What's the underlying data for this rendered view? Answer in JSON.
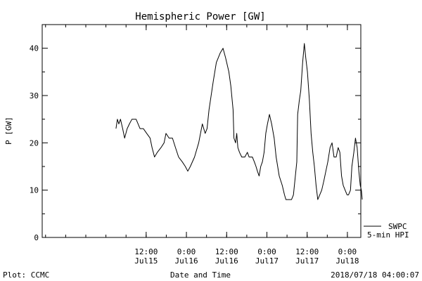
{
  "chart_data": {
    "type": "line",
    "title": "Hemispheric Power [GW]",
    "ylabel": "P [GW]",
    "xlabel": "Date and Time",
    "ylim": [
      0,
      45
    ],
    "yticks": [
      0,
      10,
      20,
      30,
      40
    ],
    "xlim": [
      "2018-07-14 05:00",
      "2018-07-18 04:00"
    ],
    "xticks": [
      {
        "time": "2018-07-15 12:00",
        "line1": "12:00",
        "line2": "Jul15"
      },
      {
        "time": "2018-07-16 00:00",
        "line1": "0:00",
        "line2": "Jul16"
      },
      {
        "time": "2018-07-16 12:00",
        "line1": "12:00",
        "line2": "Jul16"
      },
      {
        "time": "2018-07-17 00:00",
        "line1": "0:00",
        "line2": "Jul17"
      },
      {
        "time": "2018-07-17 12:00",
        "line1": "12:00",
        "line2": "Jul17"
      },
      {
        "time": "2018-07-18 00:00",
        "line1": "0:00",
        "line2": "Jul18"
      }
    ],
    "grid": false,
    "legend_position": "bottom-right",
    "legend": [
      "SWPC",
      "5-min HPI"
    ],
    "series": [
      {
        "name": "SWPC",
        "values": [
          [
            "2018-07-15 03:00",
            23
          ],
          [
            "2018-07-15 03:25",
            25
          ],
          [
            "2018-07-15 03:50",
            24
          ],
          [
            "2018-07-15 04:20",
            25
          ],
          [
            "2018-07-15 05:00",
            23
          ],
          [
            "2018-07-15 05:35",
            21
          ],
          [
            "2018-07-15 06:20",
            23
          ],
          [
            "2018-07-15 07:00",
            24
          ],
          [
            "2018-07-15 07:45",
            25
          ],
          [
            "2018-07-15 09:00",
            25
          ],
          [
            "2018-07-15 10:10",
            23
          ],
          [
            "2018-07-15 11:10",
            23
          ],
          [
            "2018-07-15 12:10",
            22
          ],
          [
            "2018-07-15 13:10",
            21
          ],
          [
            "2018-07-15 13:45",
            19
          ],
          [
            "2018-07-15 14:30",
            17
          ],
          [
            "2018-07-15 15:20",
            18
          ],
          [
            "2018-07-15 16:25",
            19
          ],
          [
            "2018-07-15 17:20",
            20
          ],
          [
            "2018-07-15 17:55",
            22
          ],
          [
            "2018-07-15 18:50",
            21
          ],
          [
            "2018-07-15 19:50",
            21
          ],
          [
            "2018-07-15 20:45",
            19
          ],
          [
            "2018-07-15 21:40",
            17
          ],
          [
            "2018-07-15 22:45",
            16
          ],
          [
            "2018-07-15 23:40",
            15
          ],
          [
            "2018-07-16 00:25",
            14
          ],
          [
            "2018-07-16 01:10",
            15
          ],
          [
            "2018-07-16 02:25",
            17
          ],
          [
            "2018-07-16 03:40",
            20
          ],
          [
            "2018-07-16 04:45",
            24
          ],
          [
            "2018-07-16 05:35",
            22
          ],
          [
            "2018-07-16 06:10",
            23
          ],
          [
            "2018-07-16 06:45",
            27
          ],
          [
            "2018-07-16 08:00",
            33
          ],
          [
            "2018-07-16 08:55",
            37
          ],
          [
            "2018-07-16 10:05",
            39
          ],
          [
            "2018-07-16 10:55",
            40
          ],
          [
            "2018-07-16 11:40",
            38
          ],
          [
            "2018-07-16 12:40",
            35
          ],
          [
            "2018-07-16 13:15",
            32
          ],
          [
            "2018-07-16 13:55",
            27
          ],
          [
            "2018-07-16 14:10",
            21
          ],
          [
            "2018-07-16 14:40",
            20
          ],
          [
            "2018-07-16 15:00",
            22
          ],
          [
            "2018-07-16 15:20",
            19
          ],
          [
            "2018-07-16 15:50",
            18
          ],
          [
            "2018-07-16 16:30",
            17
          ],
          [
            "2018-07-16 17:25",
            17
          ],
          [
            "2018-07-16 18:10",
            18
          ],
          [
            "2018-07-16 18:40",
            17
          ],
          [
            "2018-07-16 19:40",
            17
          ],
          [
            "2018-07-16 20:15",
            16
          ],
          [
            "2018-07-16 20:45",
            15
          ],
          [
            "2018-07-16 21:10",
            14
          ],
          [
            "2018-07-16 21:40",
            13
          ],
          [
            "2018-07-16 22:10",
            15
          ],
          [
            "2018-07-16 22:40",
            16
          ],
          [
            "2018-07-16 23:10",
            18
          ],
          [
            "2018-07-16 23:40",
            22
          ],
          [
            "2018-07-17 00:10",
            24
          ],
          [
            "2018-07-17 00:45",
            26
          ],
          [
            "2018-07-17 01:25",
            24
          ],
          [
            "2018-07-17 02:10",
            21
          ],
          [
            "2018-07-17 02:45",
            17
          ],
          [
            "2018-07-17 03:40",
            13
          ],
          [
            "2018-07-17 04:35",
            11
          ],
          [
            "2018-07-17 05:15",
            9
          ],
          [
            "2018-07-17 05:40",
            8
          ],
          [
            "2018-07-17 06:25",
            8
          ],
          [
            "2018-07-17 07:20",
            8
          ],
          [
            "2018-07-17 07:55",
            9
          ],
          [
            "2018-07-17 08:55",
            16
          ],
          [
            "2018-07-17 09:10",
            26
          ],
          [
            "2018-07-17 09:40",
            29
          ],
          [
            "2018-07-17 10:05",
            31
          ],
          [
            "2018-07-17 10:40",
            37
          ],
          [
            "2018-07-17 11:10",
            41
          ],
          [
            "2018-07-17 11:35",
            38
          ],
          [
            "2018-07-17 12:05",
            35
          ],
          [
            "2018-07-17 12:40",
            29
          ],
          [
            "2018-07-17 13:10",
            22
          ],
          [
            "2018-07-17 13:40",
            18
          ],
          [
            "2018-07-17 14:10",
            15
          ],
          [
            "2018-07-17 14:40",
            11
          ],
          [
            "2018-07-17 15:10",
            8
          ],
          [
            "2018-07-17 15:45",
            9
          ],
          [
            "2018-07-17 16:20",
            10
          ],
          [
            "2018-07-17 17:00",
            12
          ],
          [
            "2018-07-17 17:35",
            14
          ],
          [
            "2018-07-17 18:10",
            16
          ],
          [
            "2018-07-17 18:50",
            19
          ],
          [
            "2018-07-17 19:25",
            20
          ],
          [
            "2018-07-17 20:00",
            17
          ],
          [
            "2018-07-17 20:40",
            17
          ],
          [
            "2018-07-17 21:15",
            19
          ],
          [
            "2018-07-17 21:45",
            18
          ],
          [
            "2018-07-17 22:15",
            13
          ],
          [
            "2018-07-17 22:45",
            11
          ],
          [
            "2018-07-17 23:20",
            10
          ],
          [
            "2018-07-17 23:55",
            9
          ],
          [
            "2018-07-18 00:20",
            9
          ],
          [
            "2018-07-18 00:55",
            10
          ],
          [
            "2018-07-18 01:20",
            15
          ],
          [
            "2018-07-18 01:55",
            18
          ],
          [
            "2018-07-18 02:25",
            21
          ],
          [
            "2018-07-18 02:55",
            19
          ],
          [
            "2018-07-18 03:25",
            14
          ],
          [
            "2018-07-18 03:50",
            11
          ],
          [
            "2018-07-18 04:10",
            10
          ],
          [
            "2018-07-18 04:25",
            8
          ]
        ]
      }
    ]
  },
  "footer": {
    "left": "Plot: CCMC",
    "center": "Date and Time",
    "right": "2018/07/18 04:00:07"
  }
}
